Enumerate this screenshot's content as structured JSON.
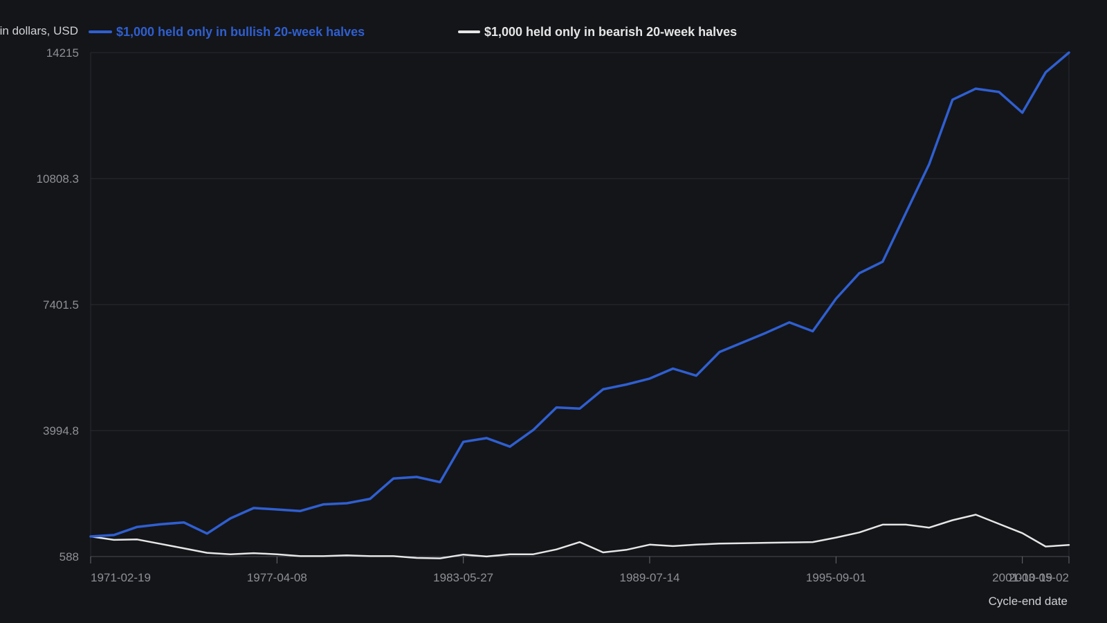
{
  "chart_data": {
    "type": "line",
    "ylabel": "Value in dollars, USD",
    "xlabel": "Cycle-end date",
    "y_ticks": [
      "588",
      "3994.8",
      "7401.5",
      "10808.3",
      "14215"
    ],
    "x_ticks": [
      {
        "date": "1971-02-19",
        "index": 0
      },
      {
        "date": "1977-04-08",
        "index": 8
      },
      {
        "date": "1983-05-27",
        "index": 16
      },
      {
        "date": "1989-07-14",
        "index": 24
      },
      {
        "date": "1995-09-01",
        "index": 32
      },
      {
        "date": "2001-10-19",
        "index": 40
      },
      {
        "date": "2003-05-02",
        "index": 42
      }
    ],
    "ylim": [
      588,
      14215
    ],
    "grid": true,
    "legend_position": "top-left",
    "series": [
      {
        "name": "$1,000 held only in bullish 20-week halves",
        "color": "#2f5fd1",
        "values": [
          1130,
          1170,
          1390,
          1460,
          1510,
          1210,
          1620,
          1900,
          1860,
          1820,
          2000,
          2030,
          2150,
          2700,
          2740,
          2600,
          3690,
          3790,
          3560,
          4010,
          4620,
          4590,
          5110,
          5240,
          5400,
          5670,
          5480,
          6120,
          6380,
          6640,
          6920,
          6680,
          7560,
          8250,
          8560,
          9880,
          11200,
          12940,
          13240,
          13150,
          12590,
          13680,
          14215
        ]
      },
      {
        "name": "$1,000 held only in bearish 20-week halves",
        "color": "#e6e6e6",
        "values": [
          1130,
          1040,
          1050,
          930,
          810,
          690,
          650,
          680,
          650,
          600,
          600,
          620,
          600,
          600,
          550,
          540,
          640,
          590,
          650,
          650,
          780,
          980,
          700,
          770,
          910,
          870,
          910,
          940,
          950,
          960,
          970,
          980,
          1100,
          1240,
          1450,
          1450,
          1370,
          1570,
          1720,
          1470,
          1220,
          860,
          900
        ]
      }
    ]
  }
}
